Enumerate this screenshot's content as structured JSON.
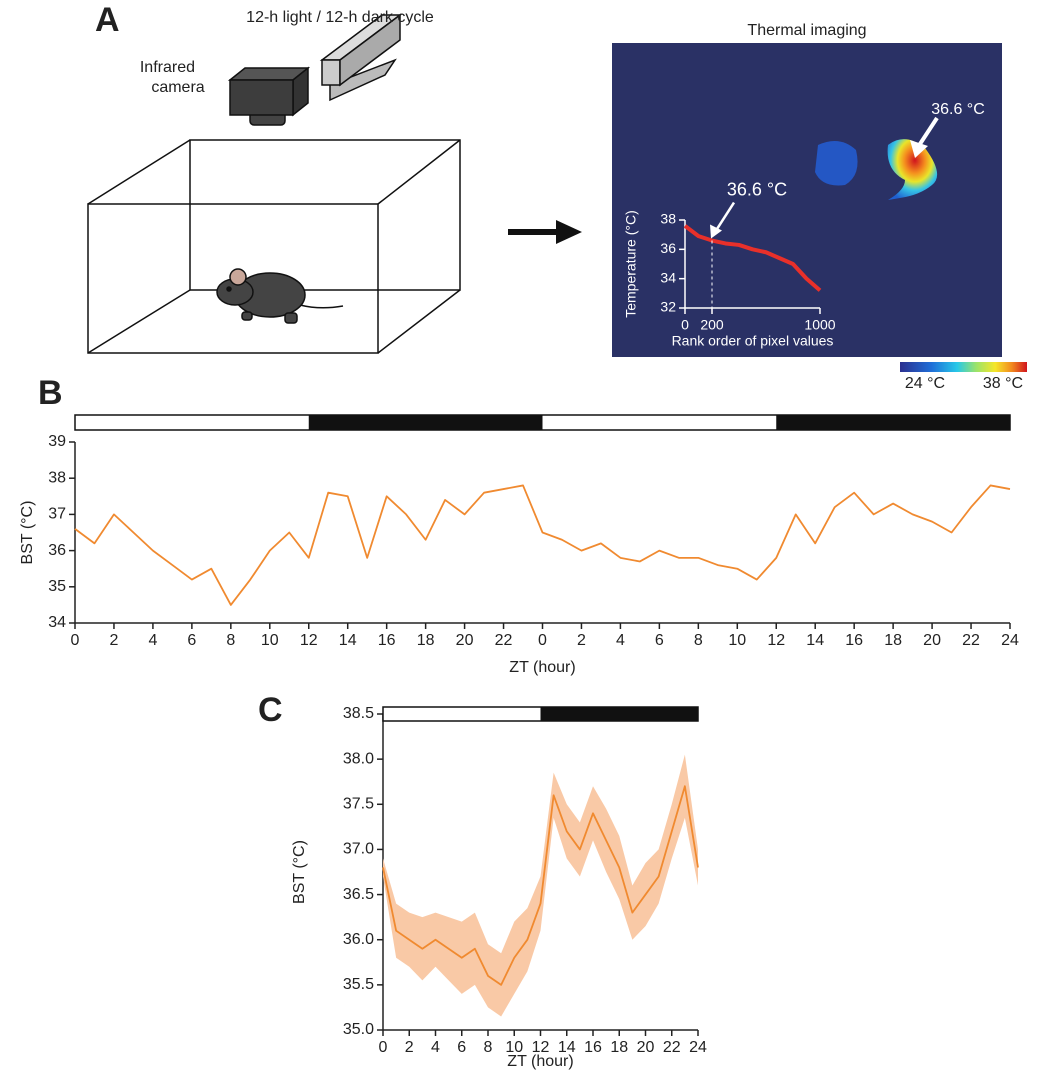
{
  "panel_labels": [
    "A",
    "B",
    "C"
  ],
  "diagram": {
    "light_label": "12-h light / 12-h dark cycle",
    "camera_label": [
      "Infrared",
      "camera"
    ],
    "thermal_title": "Thermal imaging",
    "hotspot_label": "36.6 °C",
    "colorbar": {
      "min_label": "24 °C",
      "max_label": "38 °C"
    }
  },
  "chart_data": [
    {
      "type": "line",
      "x": [
        0,
        100,
        200,
        300,
        400,
        500,
        600,
        700,
        800,
        900,
        1000
      ],
      "values": [
        37.6,
        36.9,
        36.6,
        36.4,
        36.3,
        36.0,
        35.8,
        35.4,
        35.0,
        34.0,
        33.2
      ],
      "color": "#e8302a",
      "xlim": [
        0,
        1000
      ],
      "xticks": [
        0,
        200,
        1000
      ],
      "ylim": [
        32,
        38
      ],
      "yticks": [
        32,
        34,
        36,
        38
      ],
      "xlabel": "Rank order of pixel values",
      "ylabel": "Temperature (°C)",
      "annotation": {
        "text": "36.6 °C",
        "x": 200,
        "y": 36.6
      }
    },
    {
      "type": "line",
      "x": [
        0,
        1,
        2,
        3,
        4,
        5,
        6,
        7,
        8,
        9,
        10,
        11,
        12,
        13,
        14,
        15,
        16,
        17,
        18,
        19,
        20,
        21,
        22,
        23,
        24,
        25,
        26,
        27,
        28,
        29,
        30,
        31,
        32,
        33,
        34,
        35,
        36,
        37,
        38,
        39,
        40,
        41,
        42,
        43,
        44,
        45,
        46,
        47,
        48
      ],
      "values": [
        36.6,
        36.2,
        37.0,
        36.5,
        36.0,
        35.6,
        35.2,
        35.5,
        34.5,
        35.2,
        36.0,
        36.5,
        35.8,
        37.6,
        37.5,
        35.8,
        37.5,
        37.0,
        36.3,
        37.4,
        37.0,
        37.6,
        37.7,
        37.8,
        36.5,
        36.3,
        36.0,
        36.2,
        35.8,
        35.7,
        36.0,
        35.8,
        35.8,
        35.6,
        35.5,
        35.2,
        35.8,
        37.0,
        36.2,
        37.2,
        37.6,
        37.0,
        37.3,
        37.0,
        36.8,
        36.5,
        37.2,
        37.8,
        37.7
      ],
      "color": "#f08a30",
      "xlim": [
        0,
        48
      ],
      "xticks": [
        0,
        2,
        4,
        6,
        8,
        10,
        12,
        14,
        16,
        18,
        20,
        22,
        {
          "value": 24,
          "label": "0"
        },
        {
          "value": 26,
          "label": "2"
        },
        {
          "value": 28,
          "label": "4"
        },
        {
          "value": 30,
          "label": "6"
        },
        {
          "value": 32,
          "label": "8"
        },
        {
          "value": 34,
          "label": "10"
        },
        {
          "value": 36,
          "label": "12"
        },
        {
          "value": 38,
          "label": "14"
        },
        {
          "value": 40,
          "label": "16"
        },
        {
          "value": 42,
          "label": "18"
        },
        {
          "value": 44,
          "label": "20"
        },
        {
          "value": 46,
          "label": "22"
        },
        {
          "value": 48,
          "label": "24"
        }
      ],
      "ylim": [
        34,
        39
      ],
      "yticks": [
        34,
        35,
        36,
        37,
        38,
        39
      ],
      "xlabel": "ZT (hour)",
      "ylabel": "BST (°C)",
      "dark_intervals": [
        [
          12,
          24
        ],
        [
          36,
          48
        ]
      ]
    },
    {
      "type": "line",
      "x": [
        0,
        1,
        2,
        3,
        4,
        5,
        6,
        7,
        8,
        9,
        10,
        11,
        12,
        13,
        14,
        15,
        16,
        17,
        18,
        19,
        20,
        21,
        22,
        23,
        24
      ],
      "values": [
        36.8,
        36.1,
        36.0,
        35.9,
        36.0,
        35.9,
        35.8,
        35.9,
        35.6,
        35.5,
        35.8,
        36.0,
        36.4,
        37.6,
        37.2,
        37.0,
        37.4,
        37.1,
        36.8,
        36.3,
        36.5,
        36.7,
        37.2,
        37.7,
        36.8
      ],
      "errors": [
        0.1,
        0.3,
        0.3,
        0.35,
        0.3,
        0.35,
        0.4,
        0.4,
        0.35,
        0.35,
        0.4,
        0.35,
        0.3,
        0.25,
        0.3,
        0.3,
        0.3,
        0.35,
        0.35,
        0.3,
        0.35,
        0.3,
        0.3,
        0.35,
        0.2
      ],
      "color": "#f08a30",
      "band_color": "#f9c9a6",
      "xlim": [
        0,
        24
      ],
      "xticks": [
        0,
        2,
        4,
        6,
        8,
        10,
        12,
        14,
        16,
        18,
        20,
        22,
        24
      ],
      "ylim": [
        35,
        38.5
      ],
      "yticks": [
        {
          "value": 35,
          "label": "35.0"
        },
        35.5,
        {
          "value": 36,
          "label": "36.0"
        },
        36.5,
        {
          "value": 37,
          "label": "37.0"
        },
        37.5,
        {
          "value": 38,
          "label": "38.0"
        },
        38.5
      ],
      "xlabel": "ZT (hour)",
      "ylabel": "BST (°C)",
      "dark_intervals": [
        [
          12,
          24
        ]
      ]
    }
  ]
}
